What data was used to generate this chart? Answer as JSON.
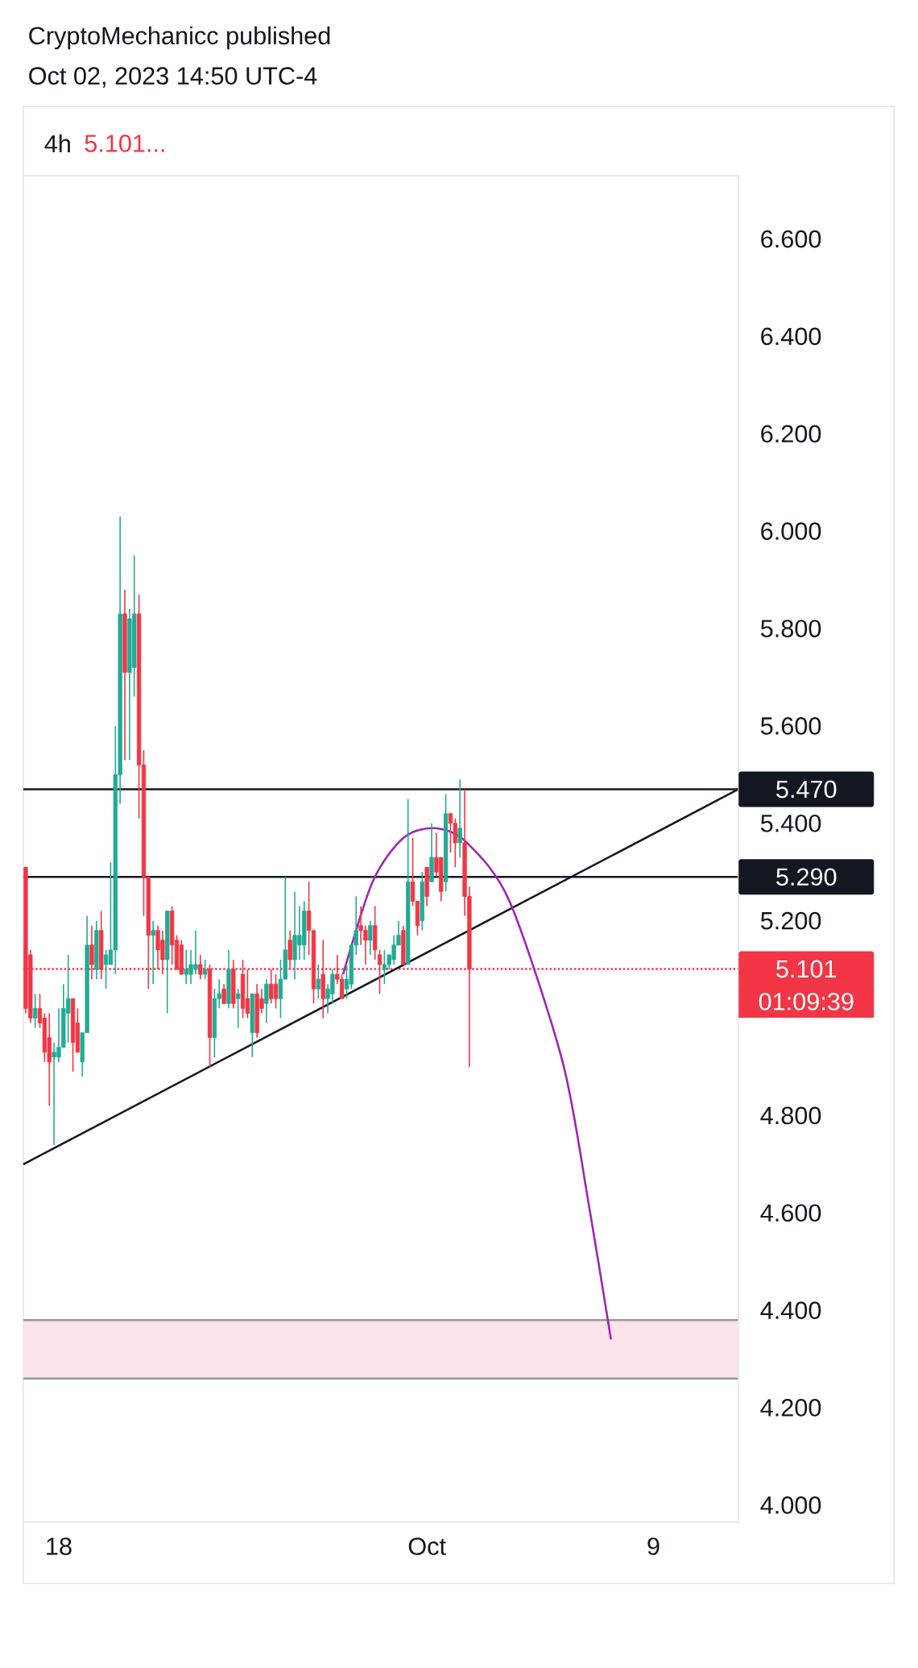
{
  "chart_data": {
    "type": "candlestick",
    "title": "4h",
    "subtitle": "Oct 02, 2023 14:50 UTC-4",
    "annotations": [
      "CryptoMechanicc published",
      "5.101...",
      "01:09:39"
    ],
    "x": [
      "2023-09-16T20:00",
      "2023-09-17T00:00",
      "2023-09-17T04:00",
      "2023-09-17T08:00",
      "2023-09-17T12:00",
      "2023-09-17T16:00",
      "2023-09-17T20:00",
      "2023-09-18T00:00",
      "2023-09-18T04:00",
      "2023-09-18T08:00",
      "2023-09-18T12:00",
      "2023-09-18T16:00",
      "2023-09-18T20:00",
      "2023-09-19T00:00",
      "2023-09-19T04:00",
      "2023-09-19T08:00",
      "2023-09-19T12:00",
      "2023-09-19T16:00",
      "2023-09-19T20:00",
      "2023-09-20T00:00",
      "2023-09-20T04:00",
      "2023-09-20T08:00",
      "2023-09-20T12:00",
      "2023-09-20T16:00",
      "2023-09-20T20:00",
      "2023-09-21T00:00",
      "2023-09-21T04:00",
      "2023-09-21T08:00",
      "2023-09-21T12:00",
      "2023-09-21T16:00",
      "2023-09-21T20:00",
      "2023-09-22T00:00",
      "2023-09-22T04:00",
      "2023-09-22T08:00",
      "2023-09-22T12:00",
      "2023-09-22T16:00",
      "2023-09-22T20:00",
      "2023-09-23T00:00",
      "2023-09-23T04:00",
      "2023-09-23T08:00",
      "2023-09-23T12:00",
      "2023-09-23T16:00",
      "2023-09-23T20:00",
      "2023-09-24T00:00",
      "2023-09-24T04:00",
      "2023-09-24T08:00",
      "2023-09-24T12:00",
      "2023-09-24T16:00",
      "2023-09-24T20:00",
      "2023-09-25T00:00",
      "2023-09-25T04:00",
      "2023-09-25T08:00",
      "2023-09-25T12:00",
      "2023-09-25T16:00",
      "2023-09-25T20:00",
      "2023-09-26T00:00",
      "2023-09-26T04:00",
      "2023-09-26T08:00",
      "2023-09-26T12:00",
      "2023-09-26T16:00",
      "2023-09-26T20:00",
      "2023-09-27T00:00",
      "2023-09-27T04:00",
      "2023-09-27T08:00",
      "2023-09-27T12:00",
      "2023-09-27T16:00",
      "2023-09-27T20:00",
      "2023-09-28T00:00",
      "2023-09-28T04:00",
      "2023-09-28T08:00",
      "2023-09-28T12:00",
      "2023-09-28T16:00",
      "2023-09-28T20:00",
      "2023-09-29T00:00",
      "2023-09-29T04:00",
      "2023-09-29T08:00",
      "2023-09-29T12:00",
      "2023-09-29T16:00",
      "2023-09-29T20:00",
      "2023-09-30T00:00",
      "2023-09-30T04:00",
      "2023-09-30T08:00",
      "2023-09-30T12:00",
      "2023-09-30T16:00",
      "2023-09-30T20:00",
      "2023-10-01T00:00",
      "2023-10-01T04:00",
      "2023-10-01T08:00",
      "2023-10-01T12:00",
      "2023-10-01T16:00",
      "2023-10-01T20:00",
      "2023-10-02T00:00",
      "2023-10-02T04:00",
      "2023-10-02T08:00",
      "2023-10-02T12:00"
    ],
    "ohlc": [
      [
        5.31,
        5.31,
        5.01,
        5.02
      ],
      [
        5.13,
        5.14,
        4.99,
        5.0
      ],
      [
        5.0,
        5.05,
        4.98,
        5.02
      ],
      [
        5.02,
        5.05,
        4.98,
        4.99
      ],
      [
        5.0,
        5.01,
        4.91,
        4.93
      ],
      [
        4.96,
        5.01,
        4.82,
        4.91
      ],
      [
        4.92,
        4.95,
        4.74,
        4.93
      ],
      [
        4.92,
        5.02,
        4.91,
        4.94
      ],
      [
        4.94,
        5.07,
        4.94,
        5.02
      ],
      [
        5.01,
        5.13,
        4.95,
        5.04
      ],
      [
        5.04,
        5.04,
        4.89,
        4.95
      ],
      [
        4.99,
        5.02,
        4.93,
        4.93
      ],
      [
        4.91,
        4.97,
        4.88,
        4.97
      ],
      [
        4.97,
        5.21,
        4.97,
        5.15
      ],
      [
        5.15,
        5.19,
        5.08,
        5.11
      ],
      [
        5.1,
        5.2,
        5.08,
        5.18
      ],
      [
        5.18,
        5.22,
        5.08,
        5.1
      ],
      [
        5.11,
        5.14,
        5.06,
        5.13
      ],
      [
        5.11,
        5.32,
        5.11,
        5.14
      ],
      [
        5.14,
        5.6,
        5.09,
        5.5
      ],
      [
        5.5,
        6.03,
        5.44,
        5.83
      ],
      [
        5.83,
        5.88,
        5.53,
        5.71
      ],
      [
        5.71,
        5.84,
        5.53,
        5.82
      ],
      [
        5.72,
        5.95,
        5.66,
        5.83
      ],
      [
        5.83,
        5.87,
        5.41,
        5.52
      ],
      [
        5.52,
        5.55,
        5.21,
        5.29
      ],
      [
        5.29,
        5.29,
        5.06,
        5.17
      ],
      [
        5.17,
        5.2,
        5.07,
        5.18
      ],
      [
        5.18,
        5.19,
        5.1,
        5.14
      ],
      [
        5.16,
        5.18,
        5.09,
        5.12
      ],
      [
        5.12,
        5.22,
        5.01,
        5.22
      ],
      [
        5.22,
        5.23,
        5.11,
        5.15
      ],
      [
        5.16,
        5.17,
        5.1,
        5.1
      ],
      [
        5.15,
        5.16,
        5.09,
        5.09
      ],
      [
        5.09,
        5.14,
        5.07,
        5.1
      ],
      [
        5.09,
        5.14,
        5.07,
        5.11
      ],
      [
        5.1,
        5.18,
        5.09,
        5.11
      ],
      [
        5.11,
        5.13,
        5.08,
        5.09
      ],
      [
        5.09,
        5.12,
        5.08,
        5.1
      ],
      [
        5.1,
        5.11,
        4.9,
        4.96
      ],
      [
        4.96,
        5.06,
        4.92,
        5.04
      ],
      [
        5.04,
        5.08,
        5.02,
        5.05
      ],
      [
        5.06,
        5.07,
        5.03,
        5.03
      ],
      [
        5.03,
        5.14,
        5.02,
        5.1
      ],
      [
        5.1,
        5.12,
        5.02,
        5.03
      ],
      [
        5.04,
        5.06,
        4.98,
        5.05
      ],
      [
        5.09,
        5.12,
        5.0,
        5.02
      ],
      [
        5.04,
        5.1,
        5.0,
        5.01
      ],
      [
        4.97,
        5.05,
        4.92,
        5.05
      ],
      [
        5.05,
        5.07,
        4.96,
        4.97
      ],
      [
        5.04,
        5.06,
        5.01,
        5.02
      ],
      [
        5.03,
        5.08,
        4.99,
        5.07
      ],
      [
        5.07,
        5.1,
        5.03,
        5.04
      ],
      [
        5.07,
        5.09,
        5.02,
        5.04
      ],
      [
        5.04,
        5.12,
        5.0,
        5.08
      ],
      [
        5.08,
        5.29,
        5.08,
        5.14
      ],
      [
        5.16,
        5.18,
        5.1,
        5.12
      ],
      [
        5.12,
        5.26,
        5.08,
        5.17
      ],
      [
        5.15,
        5.23,
        5.12,
        5.17
      ],
      [
        5.15,
        5.24,
        5.12,
        5.22
      ],
      [
        5.22,
        5.28,
        5.13,
        5.18
      ],
      [
        5.18,
        5.18,
        5.03,
        5.06
      ],
      [
        5.06,
        5.11,
        5.04,
        5.08
      ],
      [
        5.09,
        5.16,
        5.0,
        5.04
      ],
      [
        5.04,
        5.07,
        5.01,
        5.06
      ],
      [
        5.05,
        5.1,
        5.03,
        5.09
      ],
      [
        5.09,
        5.13,
        5.07,
        5.08
      ],
      [
        5.08,
        5.09,
        5.04,
        5.04
      ],
      [
        5.06,
        5.11,
        5.04,
        5.08
      ],
      [
        5.07,
        5.15,
        5.06,
        5.15
      ],
      [
        5.15,
        5.25,
        5.13,
        5.18
      ],
      [
        5.19,
        5.23,
        5.15,
        5.18
      ],
      [
        5.18,
        5.19,
        5.11,
        5.16
      ],
      [
        5.16,
        5.2,
        5.13,
        5.19
      ],
      [
        5.19,
        5.23,
        5.12,
        5.14
      ],
      [
        5.13,
        5.14,
        5.05,
        5.11
      ],
      [
        5.1,
        5.14,
        5.07,
        5.11
      ],
      [
        5.11,
        5.13,
        5.1,
        5.13
      ],
      [
        5.12,
        5.17,
        5.11,
        5.15
      ],
      [
        5.15,
        5.2,
        5.15,
        5.17
      ],
      [
        5.18,
        5.19,
        5.11,
        5.11
      ],
      [
        5.11,
        5.45,
        5.11,
        5.28
      ],
      [
        5.28,
        5.37,
        5.23,
        5.24
      ],
      [
        5.24,
        5.24,
        5.17,
        5.19
      ],
      [
        5.2,
        5.3,
        5.18,
        5.28
      ],
      [
        5.31,
        5.31,
        5.23,
        5.25
      ],
      [
        5.28,
        5.4,
        5.28,
        5.33
      ],
      [
        5.33,
        5.38,
        5.29,
        5.3
      ],
      [
        5.33,
        5.33,
        5.24,
        5.26
      ],
      [
        5.28,
        5.46,
        5.26,
        5.42
      ],
      [
        5.42,
        5.42,
        5.34,
        5.4
      ],
      [
        5.4,
        5.41,
        5.31,
        5.36
      ],
      [
        5.36,
        5.49,
        5.33,
        5.39
      ],
      [
        5.36,
        5.47,
        5.21,
        5.25
      ],
      [
        5.25,
        5.27,
        4.9,
        5.101
      ]
    ],
    "colors": [
      "#f23645",
      "#f23645",
      "#22ab94",
      "#f23645",
      "#f23645",
      "#f23645",
      "#22ab94",
      "#22ab94",
      "#22ab94",
      "#22ab94",
      "#f23645",
      "#f23645",
      "#22ab94",
      "#22ab94",
      "#f23645",
      "#22ab94",
      "#f23645",
      "#22ab94",
      "#22ab94",
      "#22ab94",
      "#22ab94",
      "#f23645",
      "#22ab94",
      "#22ab94",
      "#f23645",
      "#f23645",
      "#f23645",
      "#22ab94",
      "#f23645",
      "#f23645",
      "#22ab94",
      "#f23645",
      "#f23645",
      "#f23645",
      "#22ab94",
      "#22ab94",
      "#22ab94",
      "#f23645",
      "#22ab94",
      "#f23645",
      "#22ab94",
      "#22ab94",
      "#f23645",
      "#22ab94",
      "#f23645",
      "#22ab94",
      "#f23645",
      "#f23645",
      "#22ab94",
      "#f23645",
      "#f23645",
      "#22ab94",
      "#f23645",
      "#f23645",
      "#22ab94",
      "#22ab94",
      "#f23645",
      "#22ab94",
      "#22ab94",
      "#22ab94",
      "#f23645",
      "#f23645",
      "#22ab94",
      "#f23645",
      "#22ab94",
      "#22ab94",
      "#f23645",
      "#f23645",
      "#22ab94",
      "#22ab94",
      "#22ab94",
      "#f23645",
      "#f23645",
      "#22ab94",
      "#f23645",
      "#f23645",
      "#22ab94",
      "#22ab94",
      "#22ab94",
      "#22ab94",
      "#f23645",
      "#22ab94",
      "#f23645",
      "#f23645",
      "#22ab94",
      "#f23645",
      "#22ab94",
      "#f23645",
      "#f23645",
      "#22ab94",
      "#f23645",
      "#f23645",
      "#22ab94",
      "#f23645",
      "#f23645"
    ],
    "series": [
      {
        "type": "line",
        "color": "#131722",
        "x": [
          "2023-09-16T18:00",
          "2023-10-12T00:00"
        ],
        "values": [
          4.7,
          5.47
        ]
      },
      {
        "type": "line",
        "color": "#9c27b0",
        "x": [
          "2023-09-28T01:00",
          "2023-09-29T02:00",
          "2023-09-30T04:00",
          "2023-10-01T07:00",
          "2023-10-02T10:00",
          "2023-10-03T22:00",
          "2023-10-05T19:00",
          "2023-10-06T17:00",
          "2023-10-07T12:00"
        ],
        "values": [
          5.09,
          5.28,
          5.37,
          5.39,
          5.36,
          5.24,
          4.91,
          4.62,
          4.34
        ]
      }
    ],
    "ref_lines": [
      {
        "axis": "y",
        "value": 5.47,
        "label": "5.470",
        "color": "#131722",
        "line_style": "solid"
      },
      {
        "axis": "y",
        "value": 5.29,
        "label": "5.290",
        "color": "#131722",
        "line_style": "solid"
      },
      {
        "axis": "y",
        "value": 4.38,
        "color": "#9598a1",
        "line_style": "solid"
      },
      {
        "axis": "y",
        "value": 4.26,
        "color": "#9598a1",
        "line_style": "solid"
      },
      {
        "axis": "y",
        "value": 5.101,
        "label": "5.101",
        "color": "#f23645",
        "line_style": "dotted"
      }
    ],
    "bands": [
      {
        "axis": "y",
        "from": 4.26,
        "to": 4.38,
        "color": "#fce4ea"
      }
    ],
    "xlim": [
      "2023-09-16T18:00",
      "2023-10-12T00:00"
    ],
    "xticks": [
      {
        "value": "2023-09-18",
        "label": "18"
      },
      {
        "value": "2023-10-01",
        "label": "Oct"
      },
      {
        "value": "2023-10-09",
        "label": "9"
      }
    ],
    "ylim": [
      3.965,
      6.73
    ],
    "yticks": [
      {
        "value": 4,
        "label": "4.000"
      },
      {
        "value": 4.2,
        "label": "4.200"
      },
      {
        "value": 4.4,
        "label": "4.400"
      },
      {
        "value": 4.6,
        "label": "4.600"
      },
      {
        "value": 4.8,
        "label": "4.800"
      },
      {
        "value": 5.2,
        "label": "5.200"
      },
      {
        "value": 5.4,
        "label": "5.400"
      },
      {
        "value": 5.6,
        "label": "5.600"
      },
      {
        "value": 5.8,
        "label": "5.800"
      },
      {
        "value": 6,
        "label": "6.000"
      },
      {
        "value": 6.2,
        "label": "6.200"
      },
      {
        "value": 6.4,
        "label": "6.400"
      },
      {
        "value": 6.6,
        "label": "6.600"
      }
    ]
  }
}
